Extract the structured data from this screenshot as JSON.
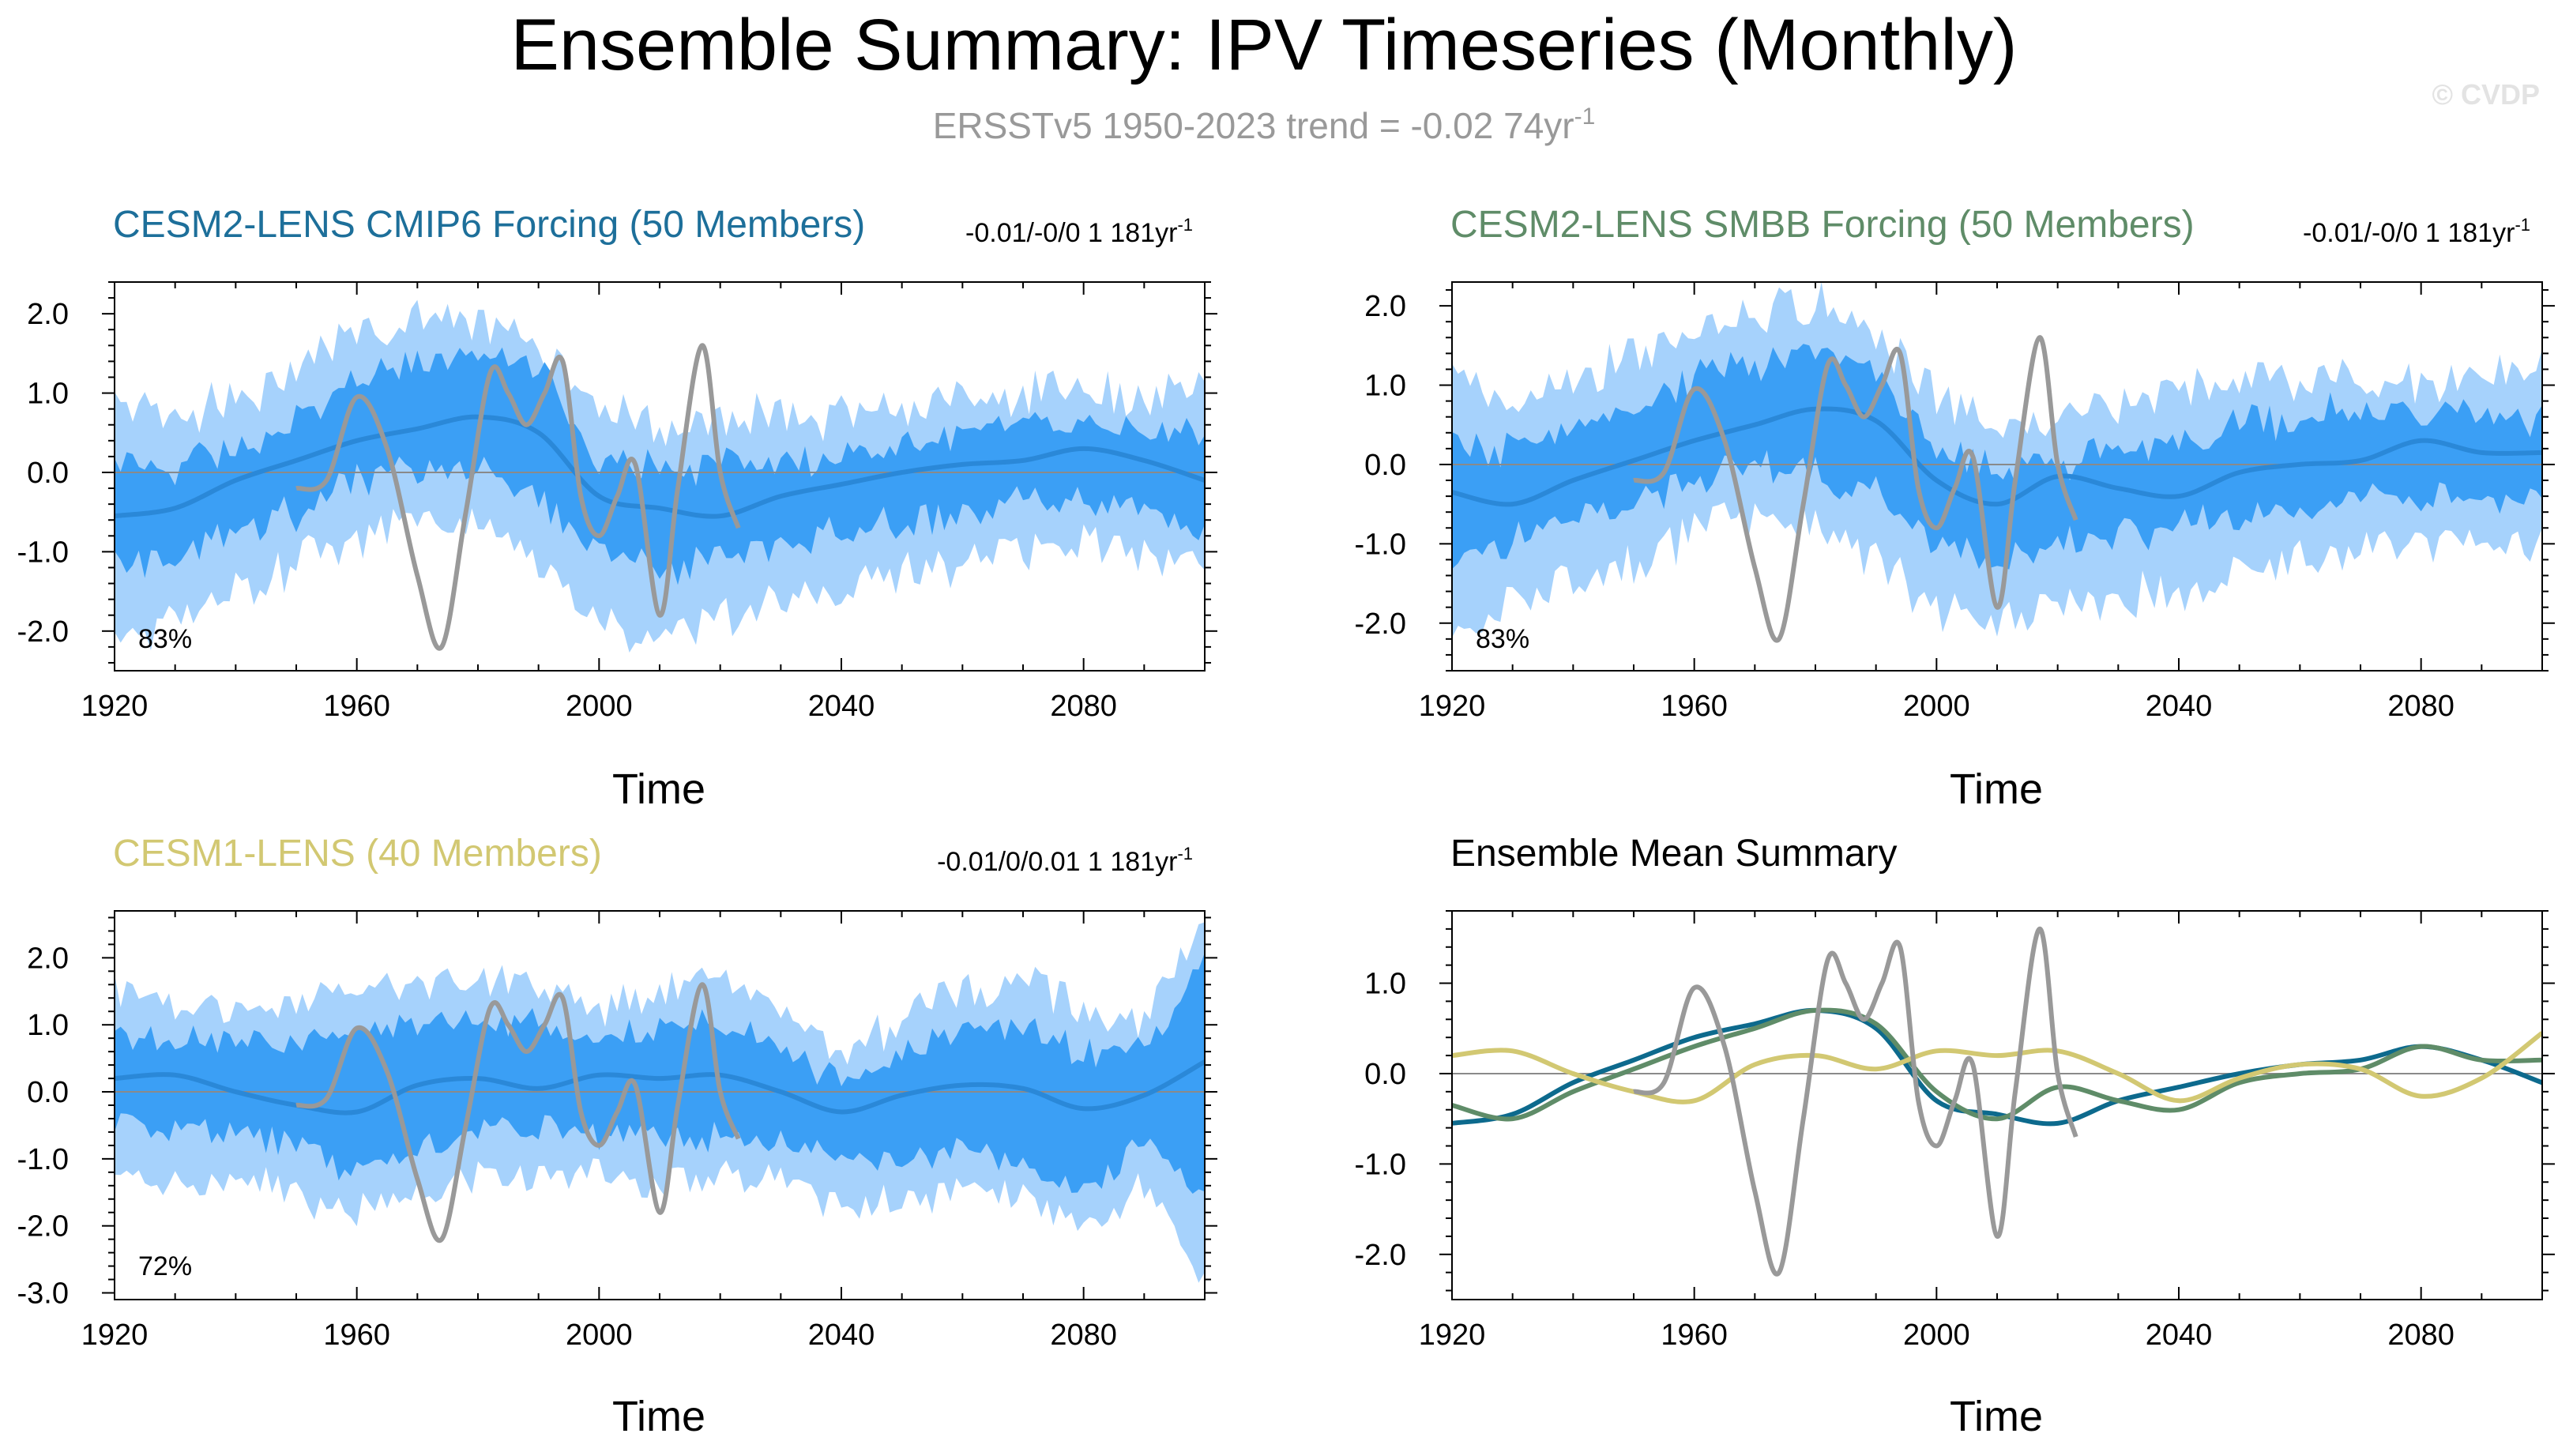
{
  "figure": {
    "title": "Ensemble Summary: IPV Timeseries (Monthly)",
    "subtitle_main": "ERSSTv5 1950-2023 trend = -0.02 74yr",
    "subtitle_sup": "-1",
    "copyright": "© CVDP"
  },
  "colors": {
    "outer_band": "#a6d2fc",
    "inner_band": "#3b9ff5",
    "mean_line": "#2a88d8",
    "obs": "#999999",
    "cesm2_cmip6": "#0d6a8d",
    "cesm2_smbb": "#5f8c68",
    "cesm1": "#d2c872"
  },
  "chart_data": [
    {
      "id": "cmip6",
      "type": "area",
      "title": "CESM2-LENS CMIP6 Forcing (50 Members)",
      "title_color": "#1d6f9a",
      "trend_text": "-0.01/-0/0 1 181yr",
      "trend_sup": "-1",
      "percent_label": "83%",
      "xlabel": "Time",
      "ylabel": "",
      "xlim": [
        1920,
        2100
      ],
      "ylim": [
        -2.5,
        2.4
      ],
      "yticks": [
        -2.0,
        -1.0,
        0.0,
        1.0,
        2.0
      ],
      "ytick_labels": [
        "-2.0",
        "-1.0",
        "0.0",
        "1.0",
        "2.0"
      ],
      "xticks": [
        1920,
        1960,
        2000,
        2040,
        2080
      ],
      "xtick_labels": [
        "1920",
        "1960",
        "2000",
        "2040",
        "2080"
      ],
      "band_x": [
        1920,
        1930,
        1940,
        1950,
        1960,
        1970,
        1980,
        1990,
        2000,
        2010,
        2020,
        2030,
        2040,
        2050,
        2060,
        2070,
        2080,
        2090,
        2100
      ],
      "outer_upper": [
        0.9,
        0.7,
        0.9,
        1.3,
        1.8,
        2.0,
        1.9,
        1.7,
        0.8,
        0.6,
        0.7,
        0.7,
        0.7,
        0.8,
        0.9,
        1.0,
        1.0,
        0.9,
        1.0
      ],
      "inner_upper": [
        0.2,
        0.1,
        0.3,
        0.7,
        1.2,
        1.5,
        1.5,
        1.3,
        0.2,
        0.0,
        0.1,
        0.1,
        0.2,
        0.3,
        0.5,
        0.6,
        0.6,
        0.5,
        0.5
      ],
      "inner_lower": [
        -1.2,
        -1.1,
        -0.8,
        -0.5,
        -0.1,
        0.0,
        0.0,
        -0.3,
        -1.0,
        -1.2,
        -1.1,
        -0.9,
        -0.8,
        -0.6,
        -0.5,
        -0.3,
        -0.3,
        -0.4,
        -0.8
      ],
      "outer_lower": [
        -2.1,
        -1.8,
        -1.5,
        -1.2,
        -0.8,
        -0.6,
        -0.7,
        -1.1,
        -1.9,
        -2.0,
        -1.9,
        -1.6,
        -1.5,
        -1.3,
        -1.1,
        -1.0,
        -0.9,
        -1.0,
        -1.2
      ],
      "mean": [
        -0.55,
        -0.45,
        -0.1,
        0.15,
        0.4,
        0.55,
        0.7,
        0.5,
        -0.3,
        -0.45,
        -0.55,
        -0.3,
        -0.15,
        0.0,
        0.1,
        0.15,
        0.3,
        0.15,
        -0.1
      ],
      "zero_line": true
    },
    {
      "id": "smbb",
      "type": "area",
      "title": "CESM2-LENS SMBB Forcing (50 Members)",
      "title_color": "#5f8c68",
      "trend_text": "-0.01/-0/0 1 181yr",
      "trend_sup": "-1",
      "percent_label": "83%",
      "xlabel": "Time",
      "ylabel": "",
      "xlim": [
        1920,
        2100
      ],
      "ylim": [
        -2.6,
        2.3
      ],
      "yticks": [
        -2.0,
        -1.0,
        0.0,
        1.0,
        2.0
      ],
      "ytick_labels": [
        "-2.0",
        "-1.0",
        "0.0",
        "1.0",
        "2.0"
      ],
      "xticks": [
        1920,
        1960,
        2000,
        2040,
        2080
      ],
      "xtick_labels": [
        "1920",
        "1960",
        "2000",
        "2040",
        "2080"
      ],
      "band_x": [
        1920,
        1930,
        1940,
        1950,
        1960,
        1970,
        1980,
        1990,
        2000,
        2010,
        2020,
        2030,
        2040,
        2050,
        2060,
        2070,
        2080,
        2090,
        2100
      ],
      "outer_upper": [
        1.1,
        0.8,
        1.0,
        1.4,
        1.7,
        1.9,
        2.0,
        1.6,
        0.8,
        0.5,
        0.6,
        0.8,
        0.9,
        1.0,
        1.1,
        1.1,
        1.0,
        1.0,
        1.3
      ],
      "inner_upper": [
        0.3,
        0.2,
        0.4,
        0.7,
        1.1,
        1.3,
        1.4,
        1.1,
        0.2,
        -0.1,
        0.0,
        0.2,
        0.3,
        0.5,
        0.6,
        0.7,
        0.6,
        0.6,
        0.6
      ],
      "inner_lower": [
        -1.2,
        -1.0,
        -0.7,
        -0.5,
        -0.2,
        0.0,
        -0.1,
        -0.4,
        -1.0,
        -1.3,
        -1.0,
        -0.9,
        -0.8,
        -0.7,
        -0.5,
        -0.4,
        -0.4,
        -0.4,
        -0.5
      ],
      "outer_lower": [
        -2.3,
        -1.7,
        -1.5,
        -1.3,
        -0.9,
        -0.7,
        -0.8,
        -1.2,
        -1.8,
        -2.0,
        -1.7,
        -1.7,
        -1.6,
        -1.3,
        -1.2,
        -1.1,
        -1.0,
        -1.0,
        -1.0
      ],
      "mean": [
        -0.35,
        -0.5,
        -0.2,
        0.05,
        0.3,
        0.5,
        0.7,
        0.55,
        -0.2,
        -0.5,
        -0.15,
        -0.3,
        -0.4,
        -0.1,
        0.0,
        0.05,
        0.3,
        0.15,
        0.15
      ],
      "zero_line": true
    },
    {
      "id": "cesm1",
      "type": "area",
      "title": "CESM1-LENS (40 Members)",
      "title_color": "#d2c872",
      "trend_text": "-0.01/0/0.01 1 181yr",
      "trend_sup": "-1",
      "percent_label": "72%",
      "xlabel": "Time",
      "ylabel": "",
      "xlim": [
        1920,
        2100
      ],
      "ylim": [
        -3.1,
        2.7
      ],
      "yticks": [
        -3.0,
        -2.0,
        -1.0,
        0.0,
        1.0,
        2.0
      ],
      "ytick_labels": [
        "-3.0",
        "-2.0",
        "-1.0",
        "0.0",
        "1.0",
        "2.0"
      ],
      "xticks": [
        1920,
        1960,
        2000,
        2040,
        2080
      ],
      "xtick_labels": [
        "1920",
        "1960",
        "2000",
        "2040",
        "2080"
      ],
      "band_x": [
        1920,
        1930,
        1940,
        1950,
        1960,
        1970,
        1980,
        1990,
        2000,
        2010,
        2020,
        2030,
        2040,
        2050,
        2060,
        2070,
        2080,
        2090,
        2100
      ],
      "outer_upper": [
        1.5,
        1.3,
        1.2,
        1.4,
        1.5,
        1.6,
        1.7,
        1.6,
        1.3,
        1.5,
        1.8,
        1.3,
        0.6,
        1.1,
        1.5,
        1.7,
        1.2,
        1.0,
        2.6
      ],
      "inner_upper": [
        0.9,
        0.8,
        0.7,
        0.7,
        0.9,
        1.0,
        1.0,
        1.0,
        0.8,
        0.9,
        1.0,
        0.7,
        0.1,
        0.6,
        0.9,
        1.0,
        0.6,
        0.6,
        2.1
      ],
      "inner_lower": [
        -0.5,
        -0.6,
        -0.6,
        -0.8,
        -1.2,
        -0.9,
        -0.6,
        -0.5,
        -0.7,
        -0.7,
        -0.7,
        -0.8,
        -1.1,
        -1.0,
        -0.9,
        -1.1,
        -1.6,
        -0.7,
        -1.6
      ],
      "outer_lower": [
        -1.2,
        -1.4,
        -1.3,
        -1.6,
        -1.7,
        -1.5,
        -1.2,
        -1.2,
        -1.3,
        -1.4,
        -1.3,
        -1.3,
        -1.7,
        -1.6,
        -1.4,
        -1.6,
        -2.1,
        -1.4,
        -2.9
      ],
      "mean": [
        0.2,
        0.25,
        0.0,
        -0.2,
        -0.3,
        0.1,
        0.2,
        0.05,
        0.25,
        0.2,
        0.25,
        0.0,
        -0.3,
        -0.05,
        0.1,
        0.05,
        -0.25,
        -0.05,
        0.45
      ],
      "zero_line": true
    },
    {
      "id": "summary",
      "type": "line",
      "title": "Ensemble Mean Summary",
      "title_color": "#000000",
      "xlabel": "Time",
      "ylabel": "",
      "xlim": [
        1920,
        2100
      ],
      "ylim": [
        -2.5,
        1.8
      ],
      "yticks": [
        -2.0,
        -1.0,
        0.0,
        1.0
      ],
      "ytick_labels": [
        "-2.0",
        "-1.0",
        "0.0",
        "1.0"
      ],
      "xticks": [
        1920,
        1960,
        2000,
        2040,
        2080
      ],
      "xtick_labels": [
        "1920",
        "1960",
        "2000",
        "2040",
        "2080"
      ],
      "zero_line": true,
      "series": [
        {
          "name": "CESM2-LENS CMIP6 Forcing",
          "color": "#0d6a8d",
          "x": [
            1920,
            1930,
            1940,
            1950,
            1960,
            1970,
            1980,
            1990,
            2000,
            2010,
            2020,
            2030,
            2040,
            2050,
            2060,
            2070,
            2080,
            2090,
            2100
          ],
          "values": [
            -0.55,
            -0.45,
            -0.1,
            0.15,
            0.4,
            0.55,
            0.7,
            0.5,
            -0.3,
            -0.45,
            -0.55,
            -0.3,
            -0.15,
            0.0,
            0.1,
            0.15,
            0.3,
            0.15,
            -0.1
          ]
        },
        {
          "name": "CESM2-LENS SMBB Forcing",
          "color": "#5f8c68",
          "x": [
            1920,
            1930,
            1940,
            1950,
            1960,
            1970,
            1980,
            1990,
            2000,
            2010,
            2020,
            2030,
            2040,
            2050,
            2060,
            2070,
            2080,
            2090,
            2100
          ],
          "values": [
            -0.35,
            -0.5,
            -0.2,
            0.05,
            0.3,
            0.5,
            0.7,
            0.55,
            -0.2,
            -0.5,
            -0.15,
            -0.3,
            -0.4,
            -0.1,
            0.0,
            0.05,
            0.3,
            0.15,
            0.15
          ]
        },
        {
          "name": "CESM1-LENS",
          "color": "#d2c872",
          "x": [
            1920,
            1930,
            1940,
            1950,
            1960,
            1970,
            1980,
            1990,
            2000,
            2010,
            2020,
            2030,
            2040,
            2050,
            2060,
            2070,
            2080,
            2090,
            2100
          ],
          "values": [
            0.2,
            0.25,
            0.0,
            -0.2,
            -0.3,
            0.1,
            0.2,
            0.05,
            0.25,
            0.2,
            0.25,
            0.0,
            -0.3,
            -0.05,
            0.1,
            0.05,
            -0.25,
            -0.05,
            0.45
          ]
        },
        {
          "name": "ERSSTv5",
          "color": "#999999",
          "x": [
            1950,
            1955,
            1960,
            1965,
            1970,
            1974,
            1978,
            1982,
            1985,
            1988,
            1991,
            1994,
            1997,
            2000,
            2003,
            2006,
            2010,
            2013,
            2017,
            2020,
            2023
          ],
          "values": [
            -0.2,
            -0.1,
            0.95,
            0.3,
            -1.3,
            -2.2,
            -0.5,
            1.25,
            1.0,
            0.6,
            1.0,
            1.4,
            -0.3,
            -0.8,
            -0.3,
            0.1,
            -1.8,
            -0.2,
            1.6,
            0.0,
            -0.7
          ]
        }
      ]
    }
  ],
  "observed": {
    "name": "ERSSTv5",
    "color": "#999999",
    "x": [
      1950,
      1955,
      1960,
      1965,
      1970,
      1974,
      1978,
      1982,
      1985,
      1988,
      1991,
      1994,
      1997,
      2000,
      2003,
      2006,
      2010,
      2013,
      2017,
      2020,
      2023
    ],
    "values": [
      -0.2,
      -0.1,
      0.95,
      0.3,
      -1.3,
      -2.2,
      -0.5,
      1.25,
      1.0,
      0.6,
      1.0,
      1.4,
      -0.3,
      -0.8,
      -0.3,
      0.1,
      -1.8,
      -0.2,
      1.6,
      0.0,
      -0.7
    ]
  }
}
